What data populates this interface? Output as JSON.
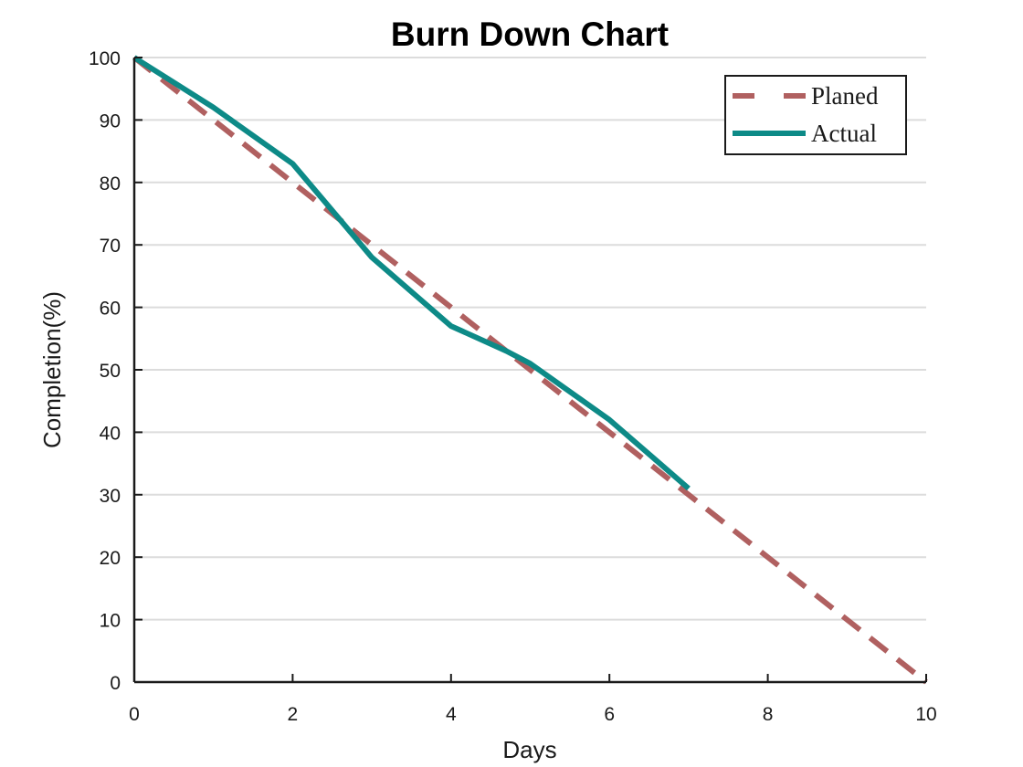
{
  "chart_data": {
    "type": "line",
    "title": "Burn Down Chart",
    "xlabel": "Days",
    "ylabel": "Completion(%)",
    "xlim": [
      0,
      10
    ],
    "ylim": [
      0,
      100
    ],
    "xticks": [
      0,
      2,
      4,
      6,
      8,
      10
    ],
    "yticks": [
      0,
      10,
      20,
      30,
      40,
      50,
      60,
      70,
      80,
      90,
      100
    ],
    "grid": "horizontal",
    "legend_position": "top-right",
    "series": [
      {
        "name": "Planed",
        "style": "dashed",
        "color": "#b06060",
        "x": [
          0,
          10
        ],
        "y": [
          100,
          0
        ]
      },
      {
        "name": "Actual",
        "style": "solid",
        "color": "#0d8a87",
        "x": [
          0,
          1,
          2,
          2.6,
          3,
          4,
          4.7,
          5,
          6,
          7
        ],
        "y": [
          100,
          92,
          83,
          74,
          68,
          57,
          53,
          51,
          42,
          31
        ]
      }
    ]
  }
}
